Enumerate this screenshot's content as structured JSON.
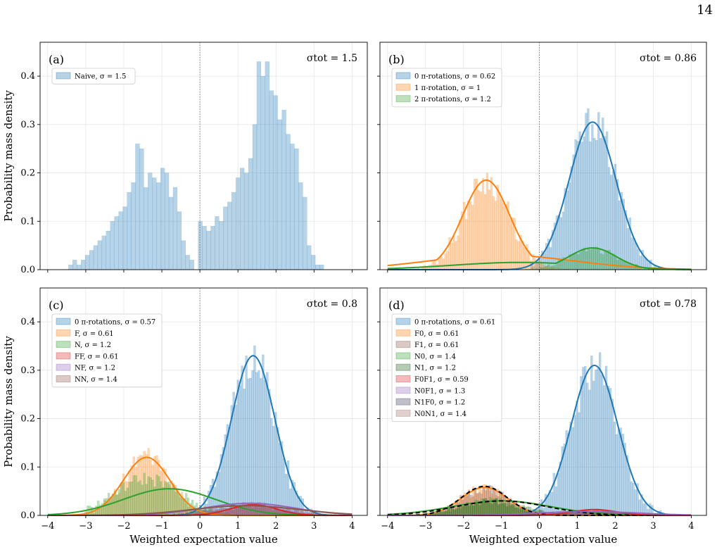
{
  "page_number": "14",
  "shared": {
    "xlabel": "Weighted expectation value",
    "ylabel": "Probability mass density",
    "xticks": [
      "−4",
      "−3",
      "−2",
      "−1",
      "0",
      "1",
      "2",
      "3",
      "4"
    ],
    "yticks": [
      "0.0",
      "0.1",
      "0.2",
      "0.3",
      "0.4"
    ]
  },
  "chart_data": [
    {
      "type": "bar",
      "panel": "(a)",
      "sigma_tot": "σtot = 1.5",
      "xlim": [
        -4.2,
        4.4
      ],
      "ylim": [
        0,
        0.47
      ],
      "grid": true,
      "legend_position": "top-left",
      "zero_line": true,
      "series": [
        {
          "name": "Naive, σ = 1.5",
          "kind": "hist",
          "color": "#1f77b4",
          "bin_width": 0.11,
          "x": [
            -3.4,
            -3.29,
            -3.18,
            -3.07,
            -2.96,
            -2.85,
            -2.74,
            -2.63,
            -2.52,
            -2.41,
            -2.3,
            -2.19,
            -2.08,
            -1.97,
            -1.86,
            -1.75,
            -1.64,
            -1.53,
            -1.42,
            -1.31,
            -1.2,
            -1.09,
            -0.98,
            -0.87,
            -0.76,
            -0.65,
            -0.54,
            -0.43,
            -0.32,
            -0.21,
            -0.1,
            0.01,
            0.12,
            0.23,
            0.34,
            0.45,
            0.56,
            0.67,
            0.78,
            0.89,
            1.0,
            1.11,
            1.22,
            1.33,
            1.44,
            1.55,
            1.66,
            1.77,
            1.88,
            1.99,
            2.1,
            2.21,
            2.32,
            2.43,
            2.54,
            2.65,
            2.76,
            2.87,
            2.98,
            3.09,
            3.2
          ],
          "values": [
            0.01,
            0.02,
            0.01,
            0.02,
            0.03,
            0.04,
            0.05,
            0.06,
            0.07,
            0.08,
            0.1,
            0.11,
            0.12,
            0.13,
            0.16,
            0.18,
            0.26,
            0.25,
            0.17,
            0.2,
            0.19,
            0.18,
            0.21,
            0.2,
            0.15,
            0.17,
            0.12,
            0.06,
            0.03,
            0.02,
            0.0,
            0.1,
            0.09,
            0.08,
            0.09,
            0.11,
            0.1,
            0.13,
            0.14,
            0.16,
            0.19,
            0.21,
            0.2,
            0.23,
            0.3,
            0.43,
            0.4,
            0.43,
            0.37,
            0.36,
            0.31,
            0.33,
            0.28,
            0.26,
            0.25,
            0.18,
            0.15,
            0.05,
            0.03,
            0.01,
            0.01
          ]
        }
      ]
    },
    {
      "type": "bar",
      "panel": "(b)",
      "sigma_tot": "σtot = 0.86",
      "xlim": [
        -4.2,
        4.4
      ],
      "ylim": [
        0,
        0.47
      ],
      "grid": true,
      "legend_position": "top-left",
      "zero_line": true,
      "series": [
        {
          "name": "0 π-rotations, σ = 0.62",
          "kind": "hist",
          "color": "#1f77b4",
          "mean": 1.4,
          "sigma": 0.62,
          "peak": 0.305,
          "noise": 0.04,
          "range": [
            -0.2,
            3.2
          ]
        },
        {
          "name": "1 π-rotation, σ = 1",
          "kind": "hist",
          "color": "#ff7f0e",
          "mean": -1.4,
          "sigma": 0.61,
          "peak": 0.185,
          "noise": 0.03,
          "range": [
            -3.3,
            1.0
          ]
        },
        {
          "name": "2 π-rotations, σ = 1.2",
          "kind": "hist",
          "color": "#2ca02c",
          "mean": 1.4,
          "sigma": 0.61,
          "peak": 0.045,
          "noise": 0.01,
          "range": [
            -2.5,
            3.0
          ]
        },
        {
          "kind": "curve",
          "color": "#1f77b4",
          "mean": 1.4,
          "sigma": 0.62,
          "peak": 0.305
        },
        {
          "kind": "curve",
          "color": "#ff7f0e",
          "mean": -1.4,
          "sigma": 0.62,
          "peak": 0.185,
          "tail": {
            "mean": -1.0,
            "sigma": 1.9,
            "peak": 0.03
          }
        },
        {
          "kind": "curve",
          "color": "#2ca02c",
          "mean": 1.4,
          "sigma": 0.62,
          "peak": 0.045,
          "tail": {
            "mean": -0.5,
            "sigma": 1.8,
            "peak": 0.015
          }
        }
      ]
    },
    {
      "type": "bar",
      "panel": "(c)",
      "sigma_tot": "σtot = 0.8",
      "xlim": [
        -4.2,
        4.4
      ],
      "ylim": [
        0,
        0.47
      ],
      "grid": true,
      "legend_position": "top-left",
      "zero_line": true,
      "series": [
        {
          "name": "0 π-rotations, σ = 0.57",
          "kind": "hist",
          "color": "#1f77b4",
          "mean": 1.4,
          "sigma": 0.57,
          "peak": 0.33,
          "noise": 0.045,
          "range": [
            -0.1,
            3.0
          ]
        },
        {
          "name": "F, σ = 0.61",
          "kind": "hist",
          "color": "#ff7f0e",
          "mean": -1.4,
          "sigma": 0.61,
          "peak": 0.12,
          "noise": 0.02,
          "range": [
            -3.0,
            0.4
          ]
        },
        {
          "name": "N, σ = 1.2",
          "kind": "hist",
          "color": "#2ca02c",
          "mean": -1.4,
          "sigma": 0.85,
          "peak": 0.075,
          "noise": 0.015,
          "range": [
            -3.0,
            1.5
          ]
        },
        {
          "name": "FF, σ = 0.61",
          "kind": "hist",
          "color": "#d62728",
          "mean": 1.4,
          "sigma": 0.61,
          "peak": 0.02,
          "noise": 0.005,
          "range": [
            0.0,
            3.0
          ]
        },
        {
          "name": "NF, σ = 1.2",
          "kind": "hist",
          "color": "#9467bd",
          "mean": 1.4,
          "sigma": 0.9,
          "peak": 0.025,
          "noise": 0.005,
          "range": [
            -1.0,
            3.2
          ]
        },
        {
          "name": "NN, σ = 1.4",
          "kind": "hist",
          "color": "#8c564b",
          "mean": 1.3,
          "sigma": 1.0,
          "peak": 0.02,
          "noise": 0.005,
          "range": [
            -1.5,
            3.2
          ]
        },
        {
          "kind": "curve",
          "color": "#1f77b4",
          "mean": 1.4,
          "sigma": 0.57,
          "peak": 0.33
        },
        {
          "kind": "curve",
          "color": "#ff7f0e",
          "mean": -1.4,
          "sigma": 0.61,
          "peak": 0.12
        },
        {
          "kind": "curve",
          "color": "#2ca02c",
          "mean": -0.8,
          "sigma": 1.2,
          "peak": 0.055
        },
        {
          "kind": "curve",
          "color": "#d62728",
          "mean": 1.4,
          "sigma": 0.61,
          "peak": 0.022
        },
        {
          "kind": "curve",
          "color": "#9467bd",
          "mean": 1.3,
          "sigma": 1.2,
          "peak": 0.025
        },
        {
          "kind": "curve",
          "color": "#8c564b",
          "mean": 1.2,
          "sigma": 1.4,
          "peak": 0.02
        }
      ]
    },
    {
      "type": "bar",
      "panel": "(d)",
      "sigma_tot": "σtot = 0.78",
      "xlim": [
        -4.2,
        4.4
      ],
      "ylim": [
        0,
        0.47
      ],
      "grid": true,
      "legend_position": "top-left",
      "zero_line": true,
      "series": [
        {
          "name": "0 π-rotations, σ = 0.61",
          "kind": "hist",
          "color": "#1f77b4",
          "mean": 1.45,
          "sigma": 0.61,
          "peak": 0.31,
          "noise": 0.045,
          "range": [
            0.0,
            3.2
          ]
        },
        {
          "name": "F0, σ = 0.61",
          "kind": "hist",
          "color": "#ff7f0e",
          "mean": -1.45,
          "sigma": 0.61,
          "peak": 0.055,
          "noise": 0.012,
          "range": [
            -2.9,
            0.0
          ]
        },
        {
          "name": "F1, σ = 0.61",
          "kind": "hist",
          "color": "#8c564b",
          "mean": -1.45,
          "sigma": 0.61,
          "peak": 0.055,
          "noise": 0.012,
          "range": [
            -2.9,
            0.0
          ]
        },
        {
          "name": "N0, σ = 1.4",
          "kind": "hist",
          "color": "#2ca02c",
          "mean": -1.3,
          "sigma": 0.8,
          "peak": 0.03,
          "noise": 0.008,
          "range": [
            -3.0,
            1.0
          ]
        },
        {
          "name": "N1, σ = 1.2",
          "kind": "hist",
          "color": "#1a5e1a",
          "mean": -1.3,
          "sigma": 0.8,
          "peak": 0.03,
          "noise": 0.008,
          "range": [
            -3.0,
            1.0
          ]
        },
        {
          "name": "F0F1, σ = 0.59",
          "kind": "hist",
          "color": "#d62728",
          "mean": 1.45,
          "sigma": 0.6,
          "peak": 0.01,
          "noise": 0.003,
          "range": [
            0.0,
            3.0
          ]
        },
        {
          "name": "N0F1, σ = 1.3",
          "kind": "hist",
          "color": "#9467bd",
          "mean": 1.4,
          "sigma": 0.9,
          "peak": 0.008,
          "noise": 0.002,
          "range": [
            -1.0,
            3.0
          ]
        },
        {
          "name": "N1F0, σ = 1.2",
          "kind": "hist",
          "color": "#3b3b5e",
          "mean": 1.4,
          "sigma": 0.9,
          "peak": 0.008,
          "noise": 0.002,
          "range": [
            -1.0,
            3.0
          ]
        },
        {
          "name": "N0N1, σ = 1.4",
          "kind": "hist",
          "color": "#a0706a",
          "mean": 1.3,
          "sigma": 1.0,
          "peak": 0.006,
          "noise": 0.002,
          "range": [
            -1.0,
            3.0
          ]
        },
        {
          "kind": "curve",
          "color": "#1f77b4",
          "mean": 1.45,
          "sigma": 0.61,
          "peak": 0.31
        },
        {
          "kind": "curve",
          "color": "#ff7f0e",
          "mean": -1.45,
          "sigma": 0.61,
          "peak": 0.058
        },
        {
          "kind": "curve",
          "color": "#000000",
          "dashed": true,
          "mean": -1.45,
          "sigma": 0.61,
          "peak": 0.06
        },
        {
          "kind": "curve",
          "color": "#2ca02c",
          "mean": -1.0,
          "sigma": 1.3,
          "peak": 0.03
        },
        {
          "kind": "curve",
          "color": "#000000",
          "dashed": true,
          "mean": -1.0,
          "sigma": 1.2,
          "peak": 0.03
        },
        {
          "kind": "curve",
          "color": "#d62728",
          "mean": 1.45,
          "sigma": 0.59,
          "peak": 0.012
        },
        {
          "kind": "curve",
          "color": "#9467bd",
          "mean": 1.3,
          "sigma": 1.3,
          "peak": 0.008
        }
      ]
    }
  ]
}
